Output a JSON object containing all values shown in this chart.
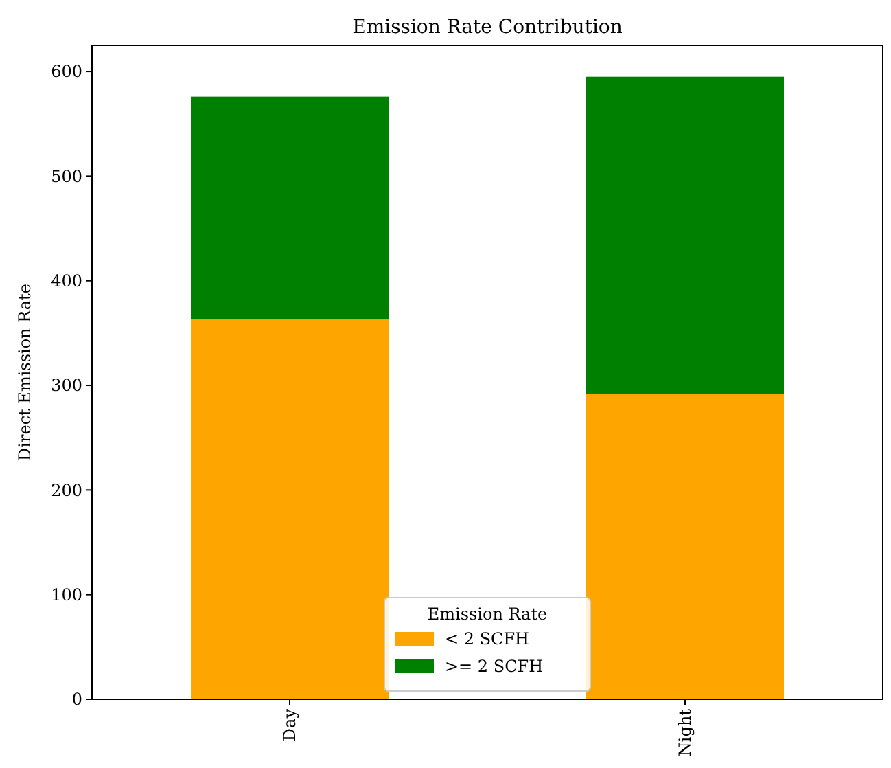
{
  "chart_data": {
    "type": "bar",
    "title": "Emission Rate Contribution",
    "ylabel": "Direct Emission Rate",
    "categories": [
      "Day",
      "Night"
    ],
    "stacked": true,
    "legend": "bottom",
    "legend_title": "Emission Rate",
    "series": [
      {
        "name": "< 2 SCFH",
        "color": "#ffa500",
        "values": [
          363,
          292
        ]
      },
      {
        "name": ">= 2 SCFH",
        "color": "#008000",
        "values": [
          213,
          303
        ]
      }
    ],
    "ylim": [
      0,
      625
    ],
    "yticks": [
      0,
      100,
      200,
      300,
      400,
      500,
      600
    ]
  }
}
